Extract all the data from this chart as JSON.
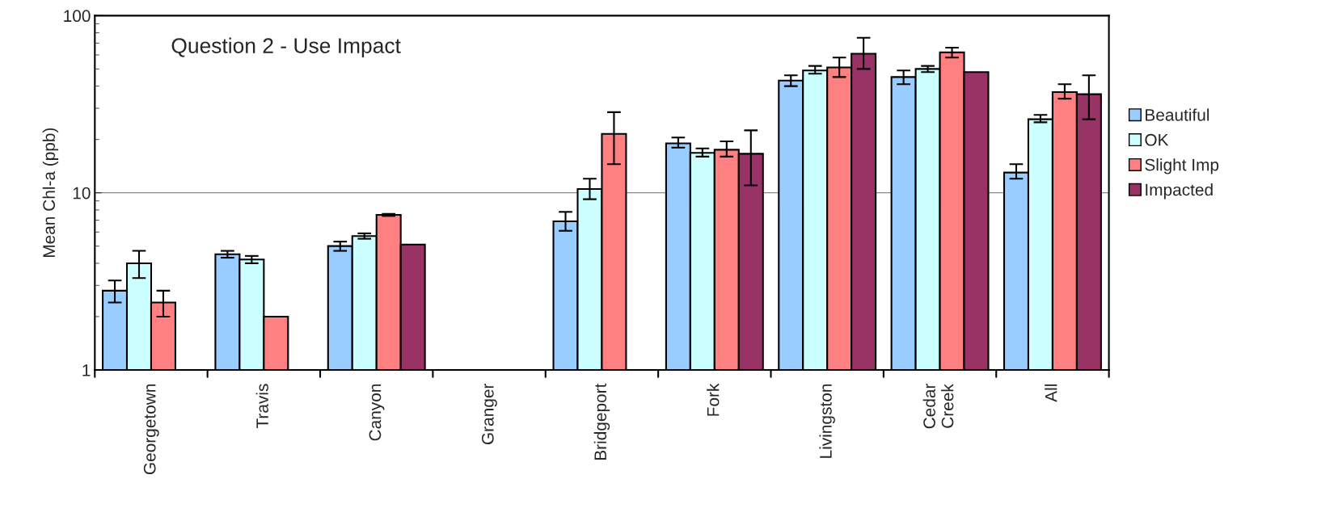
{
  "chart_data": {
    "type": "bar",
    "log": "y",
    "ylabel": "Mean Chl-a (ppb)",
    "annotations": [
      "Question 2 - Use Impact"
    ],
    "categories": [
      "Georgetown",
      "Travis",
      "Canyon",
      "Granger",
      "Bridgeport",
      "Fork",
      "Livingston",
      "Cedar\nCreek",
      "All"
    ],
    "series": [
      {
        "name": "Beautiful",
        "color": "#99ccff",
        "values": [
          2.8,
          4.5,
          5.0,
          null,
          6.9,
          19,
          43,
          45,
          13
        ],
        "errors": [
          [
            2.4,
            3.2
          ],
          [
            4.3,
            4.7
          ],
          [
            4.7,
            5.3
          ],
          null,
          [
            6.1,
            7.8
          ],
          [
            18,
            20.5
          ],
          [
            40,
            46
          ],
          [
            41,
            49
          ],
          [
            12,
            14.5
          ]
        ]
      },
      {
        "name": "OK",
        "color": "#ccffff",
        "values": [
          4.0,
          4.2,
          5.7,
          null,
          10.5,
          16.8,
          49,
          50,
          26
        ],
        "errors": [
          [
            3.3,
            4.7
          ],
          [
            4.0,
            4.4
          ],
          [
            5.5,
            5.9
          ],
          null,
          [
            9.2,
            12
          ],
          [
            16,
            17.8
          ],
          [
            47,
            52
          ],
          [
            48,
            52
          ],
          [
            25,
            27.5
          ]
        ]
      },
      {
        "name": "Slight Imp",
        "color": "#ff8080",
        "values": [
          2.4,
          2.0,
          7.5,
          null,
          21.5,
          17.5,
          51,
          62,
          37
        ],
        "errors": [
          [
            2.0,
            2.8
          ],
          null,
          [
            7.4,
            7.6
          ],
          null,
          [
            14.5,
            28.5
          ],
          [
            16,
            19.5
          ],
          [
            45,
            58
          ],
          [
            58,
            66
          ],
          [
            34,
            41
          ]
        ]
      },
      {
        "name": "Impacted",
        "color": "#993366",
        "values": [
          null,
          null,
          5.1,
          null,
          null,
          16.6,
          61,
          48,
          36
        ],
        "errors": [
          null,
          null,
          null,
          null,
          null,
          [
            11,
            22.5
          ],
          [
            50,
            75
          ],
          null,
          [
            26,
            46
          ]
        ]
      }
    ],
    "ylim": [
      1,
      100
    ],
    "yticks": [
      1,
      10,
      100
    ],
    "grid": "y",
    "legend": "right"
  }
}
